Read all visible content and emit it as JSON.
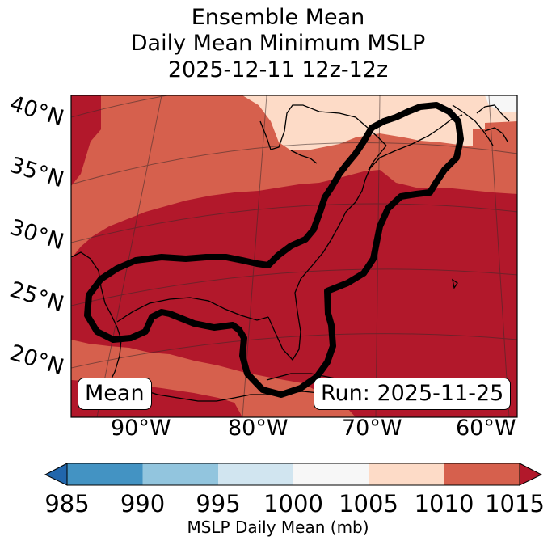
{
  "title": {
    "line1": "Ensemble Mean",
    "line2": "Daily Mean Minimum MSLP",
    "line3": "2025-12-11 12z-12z"
  },
  "map": {
    "lat_labels": [
      "40°N",
      "35°N",
      "30°N",
      "25°N",
      "20°N"
    ],
    "lon_labels": [
      "90°W",
      "80°W",
      "70°W",
      "60°W"
    ],
    "badge_left": "Mean",
    "badge_right": "Run: 2025-11-25"
  },
  "colorbar": {
    "ticks": [
      "985",
      "990",
      "995",
      "1000",
      "1005",
      "1010",
      "1015"
    ],
    "label": "MSLP Daily Mean (mb)",
    "colors": [
      "#2166ac",
      "#4393c3",
      "#92c5de",
      "#d1e5f0",
      "#f7f7f7",
      "#fddbc7",
      "#d6604d",
      "#b2182b"
    ]
  }
}
